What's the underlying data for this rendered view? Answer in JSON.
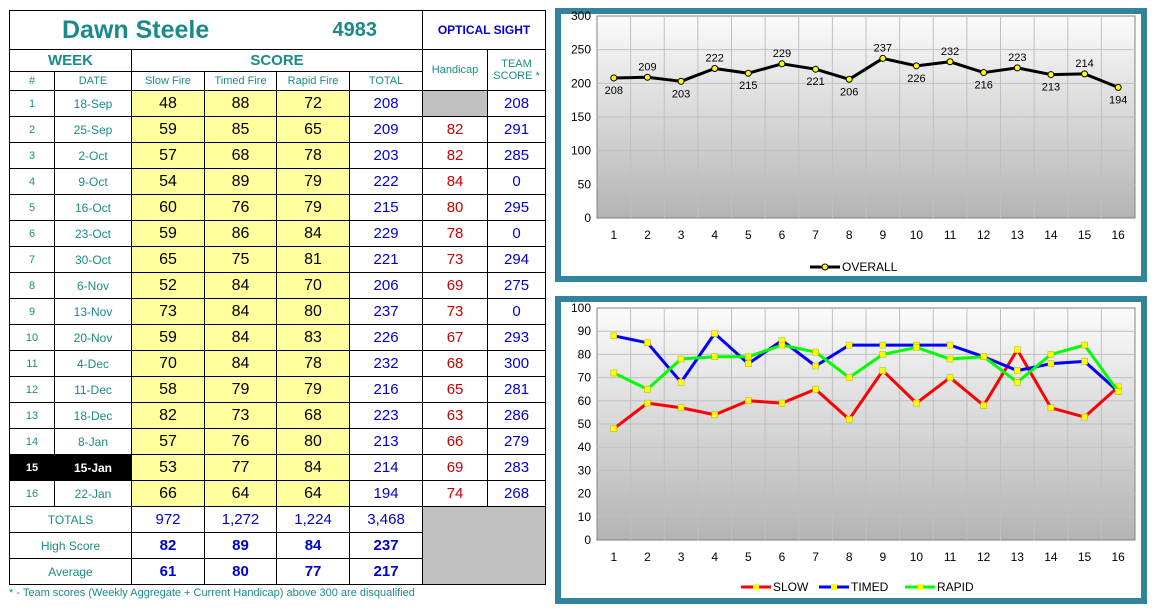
{
  "header": {
    "name": "Dawn Steele",
    "member_id": "4983",
    "division": "OPTICAL SIGHT",
    "week_label": "WEEK",
    "score_label": "SCORE",
    "handicap_label": "Handicap",
    "team_score_label_1": "TEAM",
    "team_score_label_2": "SCORE *",
    "col_num": "#",
    "col_date": "DATE",
    "col_slow": "Slow Fire",
    "col_timed": "Timed Fire",
    "col_rapid": "Rapid Fire",
    "col_total": "TOTAL"
  },
  "rows": [
    {
      "num": "1",
      "date": "18-Sep",
      "slow": "48",
      "timed": "88",
      "rapid": "72",
      "total": "208",
      "handicap": "",
      "team": "208"
    },
    {
      "num": "2",
      "date": "25-Sep",
      "slow": "59",
      "timed": "85",
      "rapid": "65",
      "total": "209",
      "handicap": "82",
      "team": "291"
    },
    {
      "num": "3",
      "date": "2-Oct",
      "slow": "57",
      "timed": "68",
      "rapid": "78",
      "total": "203",
      "handicap": "82",
      "team": "285"
    },
    {
      "num": "4",
      "date": "9-Oct",
      "slow": "54",
      "timed": "89",
      "rapid": "79",
      "total": "222",
      "handicap": "84",
      "team": "0"
    },
    {
      "num": "5",
      "date": "16-Oct",
      "slow": "60",
      "timed": "76",
      "rapid": "79",
      "total": "215",
      "handicap": "80",
      "team": "295"
    },
    {
      "num": "6",
      "date": "23-Oct",
      "slow": "59",
      "timed": "86",
      "rapid": "84",
      "total": "229",
      "handicap": "78",
      "team": "0"
    },
    {
      "num": "7",
      "date": "30-Oct",
      "slow": "65",
      "timed": "75",
      "rapid": "81",
      "total": "221",
      "handicap": "73",
      "team": "294"
    },
    {
      "num": "8",
      "date": "6-Nov",
      "slow": "52",
      "timed": "84",
      "rapid": "70",
      "total": "206",
      "handicap": "69",
      "team": "275"
    },
    {
      "num": "9",
      "date": "13-Nov",
      "slow": "73",
      "timed": "84",
      "rapid": "80",
      "total": "237",
      "handicap": "73",
      "team": "0"
    },
    {
      "num": "10",
      "date": "20-Nov",
      "slow": "59",
      "timed": "84",
      "rapid": "83",
      "total": "226",
      "handicap": "67",
      "team": "293"
    },
    {
      "num": "11",
      "date": "4-Dec",
      "slow": "70",
      "timed": "84",
      "rapid": "78",
      "total": "232",
      "handicap": "68",
      "team": "300"
    },
    {
      "num": "12",
      "date": "11-Dec",
      "slow": "58",
      "timed": "79",
      "rapid": "79",
      "total": "216",
      "handicap": "65",
      "team": "281"
    },
    {
      "num": "13",
      "date": "18-Dec",
      "slow": "82",
      "timed": "73",
      "rapid": "68",
      "total": "223",
      "handicap": "63",
      "team": "286"
    },
    {
      "num": "14",
      "date": "8-Jan",
      "slow": "57",
      "timed": "76",
      "rapid": "80",
      "total": "213",
      "handicap": "66",
      "team": "279"
    },
    {
      "num": "15",
      "date": "15-Jan",
      "slow": "53",
      "timed": "77",
      "rapid": "84",
      "total": "214",
      "handicap": "69",
      "team": "283",
      "current": true
    },
    {
      "num": "16",
      "date": "22-Jan",
      "slow": "66",
      "timed": "64",
      "rapid": "64",
      "total": "194",
      "handicap": "74",
      "team": "268"
    }
  ],
  "summary": {
    "totals_label": "TOTALS",
    "totals": [
      "972",
      "1,272",
      "1,224",
      "3,468"
    ],
    "high_label": "High Score",
    "high": [
      "82",
      "89",
      "84",
      "237"
    ],
    "avg_label": "Average",
    "avg": [
      "61",
      "80",
      "77",
      "217"
    ]
  },
  "footnote": "* - Team scores (Weekly Aggregate + Current Handicap) above 300 are disqualified",
  "colors": {
    "teal": "#1a8a8a",
    "chart_frame": "#31849b",
    "slow": "#ff0000",
    "timed": "#0000ff",
    "rapid": "#00ff00",
    "overall": "#000000",
    "marker": "#ffff00",
    "highlight": "#ffff9e"
  },
  "chart_data": [
    {
      "type": "line",
      "x": [
        1,
        2,
        3,
        4,
        5,
        6,
        7,
        8,
        9,
        10,
        11,
        12,
        13,
        14,
        15,
        16
      ],
      "series": [
        {
          "name": "OVERALL",
          "values": [
            208,
            209,
            203,
            222,
            215,
            229,
            221,
            206,
            237,
            226,
            232,
            216,
            223,
            213,
            214,
            194
          ]
        }
      ],
      "ylim": [
        0,
        300
      ],
      "yticks": [
        0,
        50,
        100,
        150,
        200,
        250,
        300
      ],
      "data_labels": true,
      "grid": true,
      "legend": "bottom"
    },
    {
      "type": "line",
      "x": [
        1,
        2,
        3,
        4,
        5,
        6,
        7,
        8,
        9,
        10,
        11,
        12,
        13,
        14,
        15,
        16
      ],
      "series": [
        {
          "name": "SLOW",
          "values": [
            48,
            59,
            57,
            54,
            60,
            59,
            65,
            52,
            73,
            59,
            70,
            58,
            82,
            57,
            53,
            66
          ]
        },
        {
          "name": "TIMED",
          "values": [
            88,
            85,
            68,
            89,
            76,
            86,
            75,
            84,
            84,
            84,
            84,
            79,
            73,
            76,
            77,
            64
          ]
        },
        {
          "name": "RAPID",
          "values": [
            72,
            65,
            78,
            79,
            79,
            84,
            81,
            70,
            80,
            83,
            78,
            79,
            68,
            80,
            84,
            64
          ]
        }
      ],
      "ylim": [
        0,
        100
      ],
      "yticks": [
        0,
        10,
        20,
        30,
        40,
        50,
        60,
        70,
        80,
        90,
        100
      ],
      "data_labels": false,
      "grid": true,
      "legend": "bottom"
    }
  ]
}
